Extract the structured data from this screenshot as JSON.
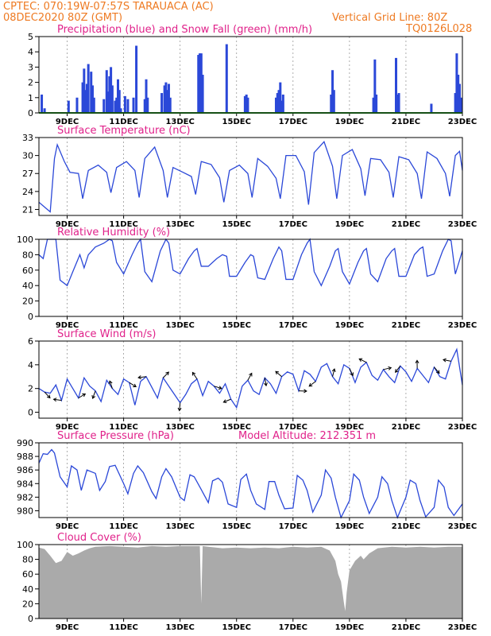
{
  "header": {
    "line1": "CPTEC:   070:19W-07:57S   TARAUACA (AC)",
    "line2": "08DEC2020 80Z (GMT)",
    "grid_note": "Vertical Grid Line: 80Z",
    "model_code": "TQ0126L028"
  },
  "colors": {
    "header": "#ee7a22",
    "title": "#e0218a",
    "series": "#2b48d8",
    "snow": "#2ca02c",
    "cloud": "#aaaaaa",
    "grid": "#999999"
  },
  "x_axis": {
    "range_days": [
      8.0,
      23.0
    ],
    "ticks": [
      {
        "day": 9,
        "label": "9DEC"
      },
      {
        "day": 11,
        "label": "11DEC"
      },
      {
        "day": 13,
        "label": "13DEC"
      },
      {
        "day": 15,
        "label": "15DEC"
      },
      {
        "day": 17,
        "label": "17DEC"
      },
      {
        "day": 19,
        "label": "19DEC"
      },
      {
        "day": 21,
        "label": "21DEC"
      },
      {
        "day": 23,
        "label": "23DEC"
      }
    ]
  },
  "chart_data": [
    {
      "id": "precip",
      "type": "bar",
      "title": "Precipitation (blue) and Snow Fall (green) (mm/h)",
      "ylim": [
        0,
        5
      ],
      "yticks": [
        0,
        1,
        2,
        3,
        4,
        5
      ],
      "series": [
        {
          "name": "Precipitation",
          "x_days": [
            8.1,
            8.2,
            9.05,
            9.35,
            9.55,
            9.6,
            9.65,
            9.7,
            9.75,
            9.85,
            9.9,
            9.95,
            10.3,
            10.4,
            10.45,
            10.5,
            10.55,
            10.6,
            10.7,
            10.75,
            10.8,
            10.85,
            10.9,
            11.05,
            11.15,
            11.35,
            11.45,
            11.75,
            11.8,
            11.85,
            12.35,
            12.45,
            12.5,
            12.55,
            12.6,
            12.65,
            13.65,
            13.7,
            13.75,
            13.8,
            14.65,
            15.3,
            15.35,
            15.4,
            16.4,
            16.45,
            16.5,
            16.55,
            16.6,
            16.65,
            18.35,
            18.4,
            18.45,
            19.85,
            19.9,
            19.95,
            20.65,
            20.7,
            20.75,
            21.9,
            22.75,
            22.8,
            22.85,
            22.9,
            22.95
          ],
          "values": [
            1.2,
            0.3,
            0.8,
            1.0,
            2.0,
            2.9,
            1.5,
            1.9,
            3.2,
            2.7,
            1.8,
            1.0,
            0.9,
            2.8,
            1.4,
            2.4,
            3.0,
            1.8,
            0.8,
            1.0,
            2.2,
            1.5,
            0.3,
            1.1,
            0.9,
            1.0,
            4.4,
            0.9,
            2.2,
            1.0,
            1.3,
            1.8,
            2.0,
            1.5,
            1.9,
            1.0,
            3.8,
            3.9,
            3.9,
            2.5,
            4.5,
            1.1,
            1.2,
            1.0,
            1.0,
            1.3,
            1.5,
            2.0,
            0.8,
            1.2,
            1.2,
            2.8,
            1.5,
            1.0,
            3.5,
            1.2,
            3.6,
            1.2,
            1.3,
            0.6,
            1.3,
            3.9,
            2.5,
            1.9,
            1.0
          ]
        },
        {
          "name": "Snow Fall",
          "x_days": [
            8.0,
            23.0
          ],
          "values": [
            0,
            0
          ]
        }
      ]
    },
    {
      "id": "temperature",
      "type": "line",
      "title": "Surface Temperature (nC)",
      "ylim": [
        20,
        33
      ],
      "yticks": [
        21,
        24,
        27,
        30,
        33
      ],
      "x_days": [
        8.0,
        8.3,
        8.4,
        8.55,
        8.65,
        8.9,
        9.1,
        9.4,
        9.55,
        9.75,
        10.1,
        10.4,
        10.55,
        10.75,
        11.1,
        11.4,
        11.55,
        11.75,
        12.1,
        12.4,
        12.55,
        12.75,
        13.1,
        13.4,
        13.55,
        13.75,
        14.1,
        14.4,
        14.55,
        14.75,
        15.1,
        15.4,
        15.55,
        15.75,
        16.1,
        16.4,
        16.55,
        16.75,
        17.1,
        17.4,
        17.55,
        17.75,
        18.1,
        18.4,
        18.55,
        18.75,
        19.1,
        19.4,
        19.55,
        19.75,
        20.1,
        20.4,
        20.55,
        20.75,
        21.1,
        21.4,
        21.55,
        21.75,
        22.1,
        22.4,
        22.55,
        22.75,
        22.9,
        23.0
      ],
      "values": [
        22.2,
        21.0,
        20.6,
        29.5,
        31.8,
        29.0,
        27.2,
        27.0,
        22.8,
        27.5,
        28.4,
        27.2,
        23.8,
        28.0,
        29.0,
        27.5,
        23.0,
        29.5,
        31.4,
        27.5,
        23.0,
        28.0,
        27.2,
        26.5,
        23.5,
        29.0,
        28.5,
        26.3,
        22.2,
        27.5,
        28.4,
        27.0,
        23.0,
        29.5,
        28.2,
        26.2,
        22.8,
        30.0,
        30.0,
        27.3,
        21.8,
        30.5,
        32.3,
        28.2,
        22.8,
        30.0,
        31.0,
        27.8,
        23.3,
        29.5,
        29.3,
        27.2,
        23.0,
        29.8,
        29.3,
        27.0,
        22.8,
        30.6,
        29.5,
        27.0,
        23.2,
        30.0,
        30.7,
        27.5
      ]
    },
    {
      "id": "humidity",
      "type": "line",
      "title": "Relative Humidity (%)",
      "ylim": [
        0,
        100
      ],
      "yticks": [
        0,
        20,
        40,
        60,
        80,
        100
      ],
      "x_days": [
        8.0,
        8.15,
        8.3,
        8.45,
        8.6,
        8.75,
        9.0,
        9.2,
        9.45,
        9.6,
        9.75,
        10.0,
        10.3,
        10.5,
        10.6,
        10.75,
        11.0,
        11.3,
        11.5,
        11.6,
        11.75,
        12.0,
        12.3,
        12.5,
        12.6,
        12.75,
        13.0,
        13.3,
        13.5,
        13.6,
        13.75,
        14.0,
        14.3,
        14.5,
        14.65,
        14.75,
        15.0,
        15.3,
        15.5,
        15.6,
        15.75,
        16.0,
        16.3,
        16.5,
        16.6,
        16.75,
        17.0,
        17.3,
        17.5,
        17.6,
        17.75,
        18.0,
        18.3,
        18.5,
        18.6,
        18.75,
        19.0,
        19.3,
        19.5,
        19.6,
        19.75,
        20.0,
        20.3,
        20.5,
        20.6,
        20.75,
        21.0,
        21.3,
        21.5,
        21.6,
        21.75,
        22.0,
        22.3,
        22.5,
        22.6,
        22.75,
        23.0
      ],
      "values": [
        80,
        75,
        100,
        100,
        100,
        47,
        40,
        58,
        80,
        63,
        80,
        90,
        95,
        100,
        98,
        70,
        55,
        80,
        95,
        100,
        58,
        45,
        85,
        100,
        95,
        60,
        55,
        75,
        85,
        88,
        65,
        65,
        75,
        80,
        78,
        52,
        52,
        70,
        80,
        78,
        50,
        48,
        75,
        90,
        85,
        48,
        48,
        80,
        95,
        100,
        58,
        40,
        65,
        85,
        88,
        58,
        42,
        70,
        85,
        88,
        55,
        45,
        75,
        85,
        88,
        52,
        52,
        80,
        88,
        90,
        52,
        55,
        85,
        100,
        98,
        55,
        85
      ]
    },
    {
      "id": "wind",
      "type": "line",
      "title": "Surface Wind (m/s)",
      "ylim": [
        -0.5,
        6
      ],
      "yticks": [
        0,
        2,
        4,
        6
      ],
      "x_days": [
        8.0,
        8.2,
        8.4,
        8.6,
        8.8,
        9.0,
        9.2,
        9.4,
        9.6,
        9.8,
        10.0,
        10.2,
        10.4,
        10.6,
        10.8,
        11.0,
        11.2,
        11.4,
        11.6,
        11.8,
        12.0,
        12.2,
        12.4,
        12.6,
        12.8,
        13.0,
        13.2,
        13.4,
        13.6,
        13.8,
        14.0,
        14.2,
        14.4,
        14.6,
        14.8,
        15.0,
        15.2,
        15.4,
        15.6,
        15.8,
        16.0,
        16.2,
        16.4,
        16.6,
        16.8,
        17.0,
        17.2,
        17.4,
        17.6,
        17.8,
        18.0,
        18.2,
        18.4,
        18.6,
        18.8,
        19.0,
        19.2,
        19.4,
        19.6,
        19.8,
        20.0,
        20.2,
        20.4,
        20.6,
        20.8,
        21.0,
        21.2,
        21.4,
        21.6,
        21.8,
        22.0,
        22.2,
        22.4,
        22.6,
        22.8,
        23.0
      ],
      "values": [
        2.0,
        1.7,
        1.6,
        2.3,
        1.0,
        2.8,
        2.0,
        1.2,
        2.9,
        2.2,
        1.8,
        0.9,
        2.7,
        2.0,
        1.5,
        2.8,
        2.5,
        0.6,
        2.6,
        3.0,
        2.1,
        1.2,
        2.9,
        2.2,
        1.5,
        0.8,
        1.5,
        2.4,
        2.8,
        1.4,
        2.6,
        2.2,
        1.6,
        2.4,
        1.1,
        0.4,
        2.2,
        2.7,
        1.8,
        1.5,
        2.9,
        2.4,
        1.6,
        3.0,
        3.4,
        3.2,
        1.8,
        3.5,
        3.2,
        2.6,
        3.8,
        4.1,
        3.0,
        2.4,
        4.0,
        3.7,
        2.5,
        3.8,
        4.2,
        3.1,
        2.7,
        3.6,
        3.0,
        2.5,
        3.9,
        3.4,
        2.6,
        3.7,
        3.1,
        2.5,
        3.8,
        3.0,
        2.8,
        4.3,
        5.3,
        2.3
      ]
    },
    {
      "id": "pressure",
      "type": "line",
      "title": "Surface Pressure (hPa)",
      "annotation": "Model Altitude: 212.351  m",
      "ylim": [
        979,
        990
      ],
      "yticks": [
        980,
        982,
        984,
        986,
        988,
        990
      ],
      "x_days": [
        8.0,
        8.15,
        8.3,
        8.45,
        8.55,
        8.75,
        9.0,
        9.15,
        9.35,
        9.5,
        9.7,
        10.0,
        10.15,
        10.35,
        10.5,
        10.7,
        11.0,
        11.15,
        11.35,
        11.5,
        11.7,
        12.0,
        12.15,
        12.35,
        12.5,
        12.7,
        13.0,
        13.15,
        13.35,
        13.5,
        13.7,
        14.0,
        14.15,
        14.35,
        14.5,
        14.7,
        15.0,
        15.15,
        15.35,
        15.5,
        15.7,
        16.0,
        16.15,
        16.35,
        16.5,
        16.7,
        17.0,
        17.15,
        17.35,
        17.5,
        17.7,
        18.0,
        18.15,
        18.35,
        18.5,
        18.7,
        19.0,
        19.15,
        19.35,
        19.5,
        19.7,
        20.0,
        20.15,
        20.35,
        20.5,
        20.7,
        21.0,
        21.15,
        21.35,
        21.5,
        21.7,
        22.0,
        22.15,
        22.35,
        22.5,
        22.7,
        23.0
      ],
      "values": [
        987.0,
        988.4,
        988.3,
        989.0,
        988.5,
        985.0,
        983.5,
        986.6,
        986.0,
        983.0,
        986.0,
        985.5,
        983.0,
        984.3,
        986.5,
        986.7,
        984.0,
        982.5,
        985.5,
        986.6,
        985.6,
        982.8,
        981.8,
        985.0,
        986.2,
        985.0,
        982.0,
        981.5,
        985.3,
        985.0,
        983.5,
        981.2,
        984.4,
        984.8,
        984.2,
        981.0,
        980.5,
        984.6,
        985.4,
        983.0,
        981.0,
        980.2,
        984.3,
        984.3,
        982.3,
        980.3,
        980.4,
        985.2,
        984.5,
        983.0,
        979.8,
        982.3,
        986.0,
        984.8,
        982.0,
        979.0,
        981.5,
        985.4,
        984.5,
        982.0,
        979.6,
        982.0,
        985.0,
        984.0,
        981.5,
        979.0,
        982.0,
        984.5,
        984.0,
        981.5,
        979.1,
        980.5,
        984.5,
        983.5,
        980.5,
        979.3,
        981.0
      ]
    },
    {
      "id": "cloud",
      "type": "area",
      "title": "Cloud Cover (%)",
      "ylim": [
        0,
        100
      ],
      "yticks": [
        0,
        20,
        40,
        60,
        80,
        100
      ],
      "x_days": [
        8.0,
        8.2,
        8.4,
        8.6,
        8.8,
        9.0,
        9.2,
        9.4,
        9.6,
        9.8,
        10.0,
        10.5,
        11.0,
        11.5,
        12.0,
        12.5,
        13.0,
        13.5,
        13.7,
        13.75,
        13.8,
        14.0,
        14.5,
        15.0,
        15.5,
        16.0,
        16.5,
        17.0,
        17.5,
        18.0,
        18.3,
        18.5,
        18.6,
        18.7,
        18.8,
        18.85,
        18.9,
        19.0,
        19.2,
        19.4,
        19.5,
        19.7,
        20.0,
        20.5,
        21.0,
        21.5,
        22.0,
        22.5,
        23.0
      ],
      "values": [
        96,
        94,
        85,
        75,
        78,
        90,
        85,
        88,
        92,
        95,
        97,
        98,
        97,
        96,
        98,
        97,
        98,
        98,
        98,
        20,
        98,
        97,
        95,
        96,
        95,
        96,
        95,
        97,
        96,
        97,
        92,
        78,
        60,
        50,
        22,
        10,
        35,
        65,
        78,
        85,
        80,
        88,
        95,
        97,
        96,
        97,
        96,
        97,
        97
      ]
    }
  ]
}
